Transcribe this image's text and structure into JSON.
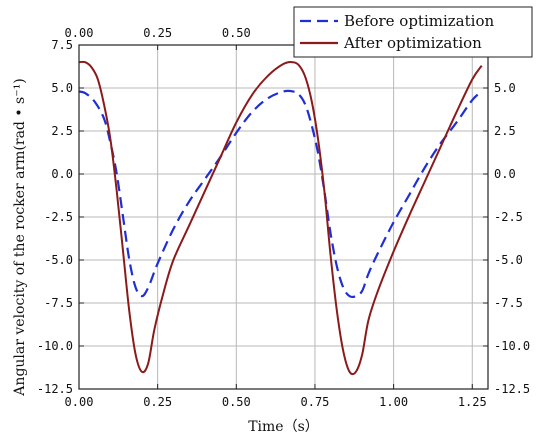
{
  "chart_data": {
    "type": "line",
    "xlabel": "Time（s）",
    "ylabel": "Angular velocity of the rocker arm(rad • s⁻¹)",
    "xlim": [
      0,
      1.3
    ],
    "ylim": [
      -12.5,
      7.5
    ],
    "x_ticks": [
      "0.00",
      "0.25",
      "0.50",
      "0.75",
      "1.00",
      "1.25"
    ],
    "top_x_ticks": [
      "0.00",
      "0.25",
      "0.50"
    ],
    "y_ticks": [
      "7.5",
      "5.0",
      "2.5",
      "0.0",
      "-2.5",
      "-5.0",
      "-7.5",
      "-10.0",
      "-12.5"
    ],
    "right_y_ticks": [
      "5.0",
      "2.5",
      "0.0",
      "-2.5",
      "-5.0",
      "-7.5",
      "-10.0",
      "-12.5"
    ],
    "grid": true,
    "legend_position": "top-right",
    "series": [
      {
        "name": "Before optimization",
        "color": "#1f2fd6",
        "style": "dashed",
        "x": [
          0.0,
          0.02,
          0.05,
          0.08,
          0.1,
          0.12,
          0.14,
          0.16,
          0.18,
          0.2,
          0.22,
          0.25,
          0.3,
          0.35,
          0.4,
          0.45,
          0.5,
          0.55,
          0.6,
          0.65,
          0.68,
          0.7,
          0.72,
          0.74,
          0.76,
          0.78,
          0.8,
          0.82,
          0.84,
          0.86,
          0.88,
          0.9,
          0.92,
          0.95,
          1.0,
          1.05,
          1.1,
          1.15,
          1.2,
          1.25,
          1.28
        ],
        "y": [
          4.8,
          4.7,
          4.2,
          3.2,
          1.8,
          0.0,
          -2.5,
          -5.0,
          -6.6,
          -7.1,
          -6.6,
          -5.2,
          -3.2,
          -1.6,
          -0.3,
          1.0,
          2.4,
          3.6,
          4.4,
          4.8,
          4.8,
          4.6,
          4.0,
          2.8,
          1.2,
          -1.0,
          -3.5,
          -5.4,
          -6.6,
          -7.1,
          -7.1,
          -6.8,
          -5.8,
          -4.6,
          -2.8,
          -1.2,
          0.4,
          1.8,
          3.0,
          4.3,
          4.8
        ]
      },
      {
        "name": "After optimization",
        "color": "#8b1a1a",
        "style": "solid",
        "x": [
          0.0,
          0.02,
          0.04,
          0.06,
          0.08,
          0.1,
          0.12,
          0.14,
          0.16,
          0.18,
          0.2,
          0.22,
          0.24,
          0.27,
          0.3,
          0.35,
          0.4,
          0.45,
          0.5,
          0.55,
          0.6,
          0.65,
          0.68,
          0.7,
          0.72,
          0.74,
          0.76,
          0.78,
          0.8,
          0.82,
          0.84,
          0.86,
          0.88,
          0.9,
          0.92,
          0.95,
          1.0,
          1.05,
          1.1,
          1.15,
          1.2,
          1.25,
          1.28
        ],
        "y": [
          6.5,
          6.5,
          6.2,
          5.5,
          4.0,
          2.0,
          -1.0,
          -4.5,
          -8.0,
          -10.5,
          -11.5,
          -11.0,
          -9.0,
          -6.8,
          -5.0,
          -3.0,
          -1.0,
          1.0,
          3.0,
          4.6,
          5.7,
          6.4,
          6.5,
          6.3,
          5.6,
          4.2,
          2.0,
          -1.0,
          -4.8,
          -8.0,
          -10.3,
          -11.5,
          -11.5,
          -10.5,
          -8.5,
          -6.8,
          -4.5,
          -2.4,
          -0.4,
          1.6,
          3.6,
          5.5,
          6.3
        ]
      }
    ]
  }
}
